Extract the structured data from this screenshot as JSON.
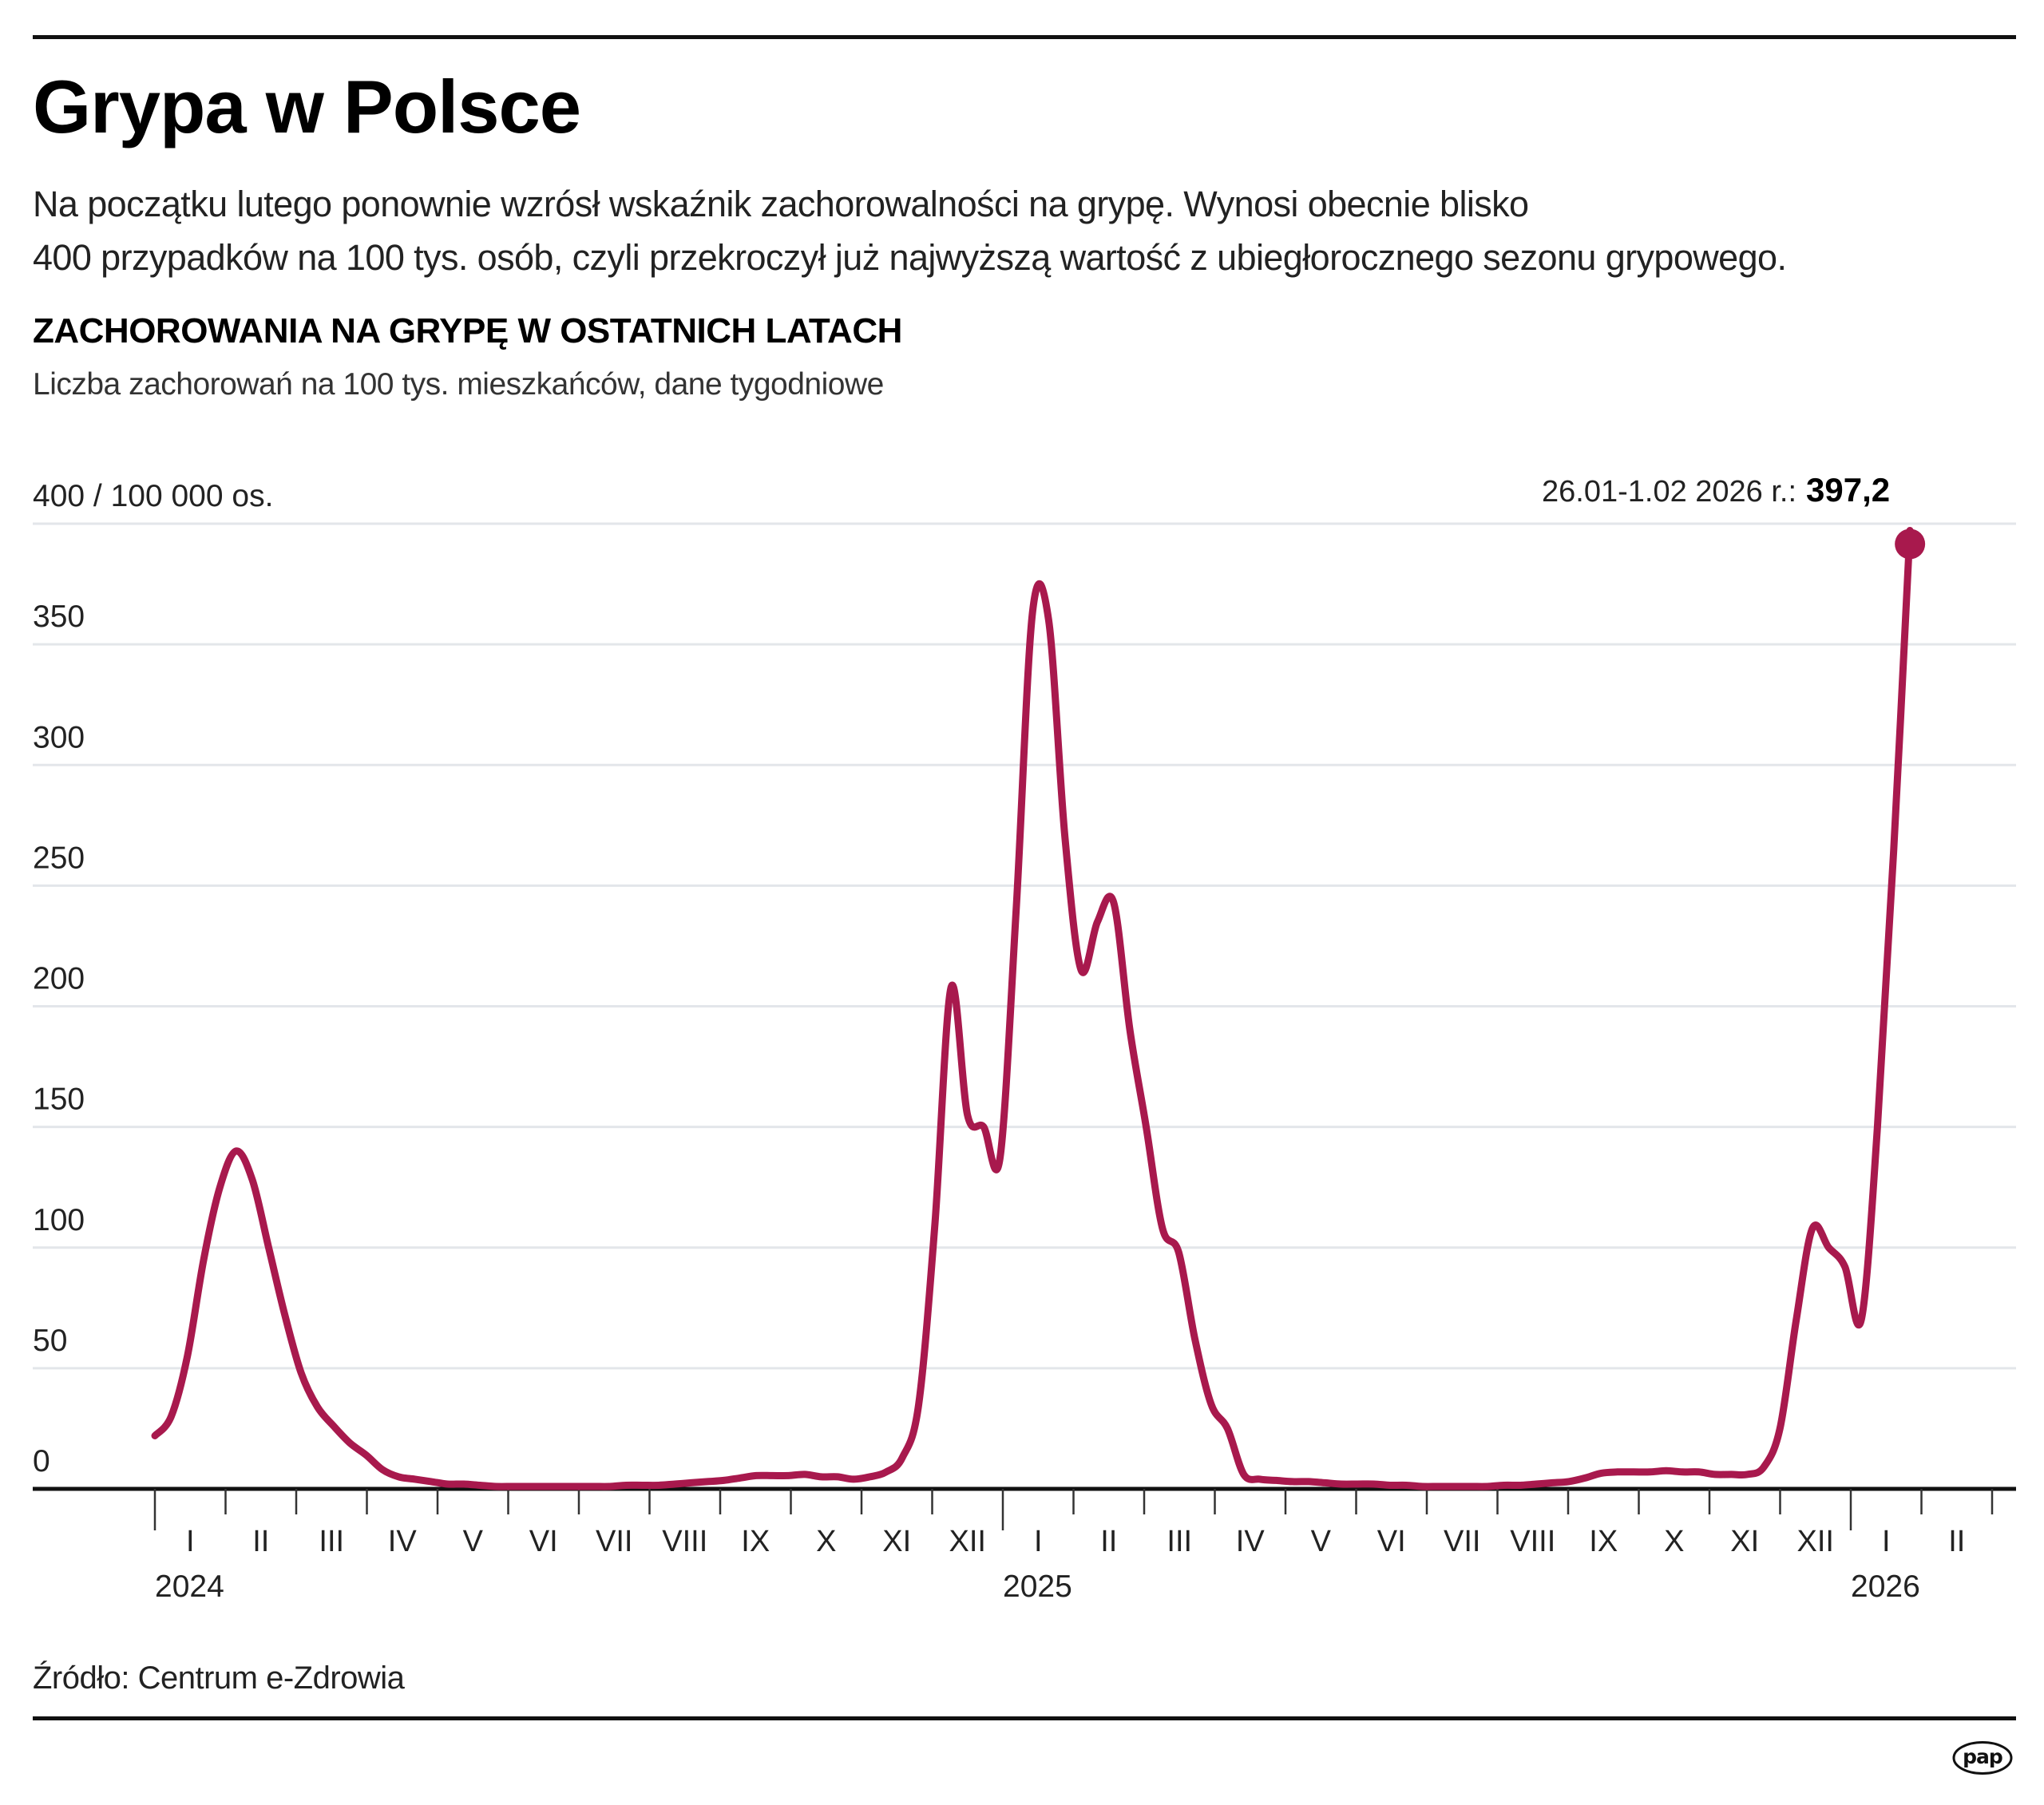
{
  "header": {
    "title": "Grypa w Polsce",
    "lead_line1": "Na początku lutego ponownie wzrósł wskaźnik zachorowalności na grypę. Wynosi obecnie blisko",
    "lead_line2": "400 przypadków na 100 tys. osób, czyli przekroczył już najwyższą wartość z ubiegłorocznego sezonu grypowego."
  },
  "footer": {
    "source": "Źródło: Centrum e-Zdrowia",
    "logo_text": "pap"
  },
  "colors": {
    "line": "#a8194d",
    "grid": "#e3e6ea",
    "axis": "#111111",
    "text": "#222222"
  },
  "chart_data": {
    "type": "line",
    "title": "ZACHOROWANIA NA GRYPĘ W OSTATNICH LATACH",
    "subtitle": "Liczba zachorowań na 100 tys. mieszkańców, dane tygodniowe",
    "ylabel": "400 / 100 000 os.",
    "xlabel": "",
    "ylim": [
      0,
      400
    ],
    "yticks": [
      0,
      50,
      100,
      150,
      200,
      250,
      300,
      350,
      400
    ],
    "ytick_labels": [
      "0",
      "50",
      "100",
      "150",
      "200",
      "250",
      "300",
      "350",
      "400 / 100 000 os."
    ],
    "grid": true,
    "x_unit": "week index from 1.01.2024",
    "x_range_weeks": [
      0,
      112
    ],
    "month_labels": [
      "I",
      "II",
      "III",
      "IV",
      "V",
      "VI",
      "VII",
      "VIII",
      "IX",
      "X",
      "XI",
      "XII",
      "I",
      "II",
      "III",
      "IV",
      "V",
      "VI",
      "VII",
      "VIII",
      "IX",
      "X",
      "XI",
      "XII",
      "I",
      "II"
    ],
    "year_labels": [
      {
        "label": "2024",
        "month_index": 0
      },
      {
        "label": "2025",
        "month_index": 12
      },
      {
        "label": "2026",
        "month_index": 24
      }
    ],
    "annotation": {
      "label": "26.01-1.02 2026 r.:",
      "value_text": "397,2",
      "week": 108,
      "value": 397.2
    },
    "series": [
      {
        "name": "Zachorowania na 100 tys.",
        "x_start_week": 0,
        "values": [
          22,
          30,
          55,
          95,
          125,
          140,
          128,
          100,
          72,
          48,
          34,
          26,
          19,
          14,
          8,
          5,
          4,
          3,
          2,
          2,
          1.5,
          1,
          1,
          1,
          1,
          1,
          1,
          1,
          1,
          1.5,
          1.5,
          1.5,
          2,
          2.5,
          3,
          3.5,
          4.5,
          5.5,
          5.5,
          5.5,
          6,
          5,
          5,
          4,
          5,
          7,
          13,
          35,
          110,
          208,
          155,
          150,
          137,
          240,
          363,
          360,
          270,
          215,
          235,
          243,
          190,
          150,
          108,
          98,
          62,
          35,
          25,
          6,
          4,
          3.5,
          3,
          3,
          2.5,
          2,
          2,
          2,
          1.5,
          1.5,
          1,
          1,
          1,
          1,
          1,
          1.5,
          1.5,
          2,
          2.5,
          3,
          4.5,
          6.5,
          7,
          7,
          7,
          7.5,
          7,
          7,
          6,
          6,
          6,
          9,
          25,
          70,
          108,
          100,
          92,
          70,
          150,
          265,
          397.2
        ]
      }
    ]
  }
}
